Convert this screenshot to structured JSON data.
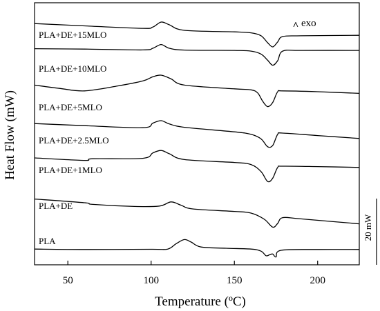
{
  "chart_data": {
    "type": "line",
    "xlabel": "Temperature (ºC)",
    "ylabel": "Heat Flow (mW)",
    "xlim": [
      30,
      225
    ],
    "x_ticks": [
      50,
      100,
      150,
      200
    ],
    "y_ticks_shown": false,
    "grid": false,
    "exo_annotation": "exo",
    "exo_arrow_glyph": "^",
    "scale_bar_label": "20 mW",
    "series": [
      {
        "name": "PLA+DE+15MLO",
        "points": [
          [
            30,
            0.64
          ],
          [
            60,
            0.08
          ],
          [
            95,
            -0.52
          ],
          [
            101,
            -0.22
          ],
          [
            106,
            1.0
          ],
          [
            111,
            0.34
          ],
          [
            120,
            -1.0
          ],
          [
            150,
            -1.36
          ],
          [
            160,
            -1.6
          ],
          [
            166,
            -2.3
          ],
          [
            170,
            -4.0
          ],
          [
            173,
            -5.0
          ],
          [
            176,
            -3.8
          ],
          [
            179,
            -2.5
          ],
          [
            190,
            -2.32
          ],
          [
            225,
            -2.2
          ]
        ]
      },
      {
        "name": "PLA+DE+10MLO",
        "points": [
          [
            30,
            0.9
          ],
          [
            60,
            0.8
          ],
          [
            95,
            0.6
          ],
          [
            101,
            1.0
          ],
          [
            106,
            1.9
          ],
          [
            111,
            1.0
          ],
          [
            120,
            0.56
          ],
          [
            150,
            0.48
          ],
          [
            160,
            0.32
          ],
          [
            166,
            -0.4
          ],
          [
            170,
            -1.9
          ],
          [
            173,
            -3.1
          ],
          [
            176,
            -2.0
          ],
          [
            179,
            0.32
          ],
          [
            190,
            0.48
          ],
          [
            225,
            0.48
          ]
        ]
      },
      {
        "name": "PLA+DE+5MLO",
        "points": [
          [
            30,
            0.6
          ],
          [
            45,
            -0.2
          ],
          [
            60,
            -0.8
          ],
          [
            80,
            0.4
          ],
          [
            95,
            1.6
          ],
          [
            101,
            2.6
          ],
          [
            106,
            3.0
          ],
          [
            112,
            2.1
          ],
          [
            120,
            0.6
          ],
          [
            150,
            -0.3
          ],
          [
            160,
            -0.55
          ],
          [
            164,
            -1.3
          ],
          [
            167,
            -3.3
          ],
          [
            170,
            -4.6
          ],
          [
            173,
            -3.6
          ],
          [
            176,
            -1.0
          ],
          [
            179,
            -0.8
          ],
          [
            200,
            -1.0
          ],
          [
            225,
            -1.4
          ]
        ]
      },
      {
        "name": "PLA+DE+2.5MLO",
        "points": [
          [
            30,
            0.3
          ],
          [
            60,
            -0.2
          ],
          [
            95,
            -0.7
          ],
          [
            101,
            0.4
          ],
          [
            106,
            1.0
          ],
          [
            111,
            0.2
          ],
          [
            120,
            -0.6
          ],
          [
            150,
            -1.7
          ],
          [
            160,
            -2.3
          ],
          [
            166,
            -3.4
          ],
          [
            170,
            -5.3
          ],
          [
            173,
            -5.0
          ],
          [
            176,
            -2.3
          ],
          [
            179,
            -2.0
          ],
          [
            200,
            -2.6
          ],
          [
            225,
            -3.3
          ]
        ]
      },
      {
        "name": "PLA+DE+1MLO",
        "points": [
          [
            30,
            0.5
          ],
          [
            60,
            -0.1
          ],
          [
            65,
            0.3
          ],
          [
            95,
            0.4
          ],
          [
            101,
            1.7
          ],
          [
            106,
            2.3
          ],
          [
            111,
            1.5
          ],
          [
            120,
            0.1
          ],
          [
            150,
            -0.6
          ],
          [
            160,
            -1.1
          ],
          [
            166,
            -2.8
          ],
          [
            170,
            -5.2
          ],
          [
            173,
            -4.4
          ],
          [
            176,
            -1.8
          ],
          [
            179,
            -1.5
          ],
          [
            200,
            -1.6
          ],
          [
            225,
            -1.8
          ]
        ]
      },
      {
        "name": "PLA+DE",
        "points": [
          [
            30,
            0.9
          ],
          [
            60,
            0.0
          ],
          [
            65,
            -0.4
          ],
          [
            90,
            -0.9
          ],
          [
            105,
            -0.8
          ],
          [
            112,
            0.2
          ],
          [
            118,
            -0.6
          ],
          [
            125,
            -1.5
          ],
          [
            150,
            -2.1
          ],
          [
            160,
            -2.5
          ],
          [
            168,
            -4.0
          ],
          [
            173,
            -5.9
          ],
          [
            176,
            -5.0
          ],
          [
            179,
            -3.6
          ],
          [
            190,
            -3.9
          ],
          [
            225,
            -5.1
          ]
        ]
      },
      {
        "name": "PLA",
        "points": [
          [
            30,
            -0.7
          ],
          [
            60,
            -0.8
          ],
          [
            100,
            -0.75
          ],
          [
            110,
            -0.7
          ],
          [
            115,
            0.6
          ],
          [
            120,
            1.6
          ],
          [
            124,
            1.0
          ],
          [
            130,
            -0.2
          ],
          [
            145,
            -0.5
          ],
          [
            160,
            -0.7
          ],
          [
            166,
            -1.2
          ],
          [
            169,
            -2.3
          ],
          [
            171,
            -2.1
          ],
          [
            173,
            -1.9
          ],
          [
            175,
            -2.6
          ],
          [
            178,
            -1.0
          ],
          [
            200,
            -0.8
          ],
          [
            225,
            -0.8
          ]
        ]
      }
    ]
  }
}
